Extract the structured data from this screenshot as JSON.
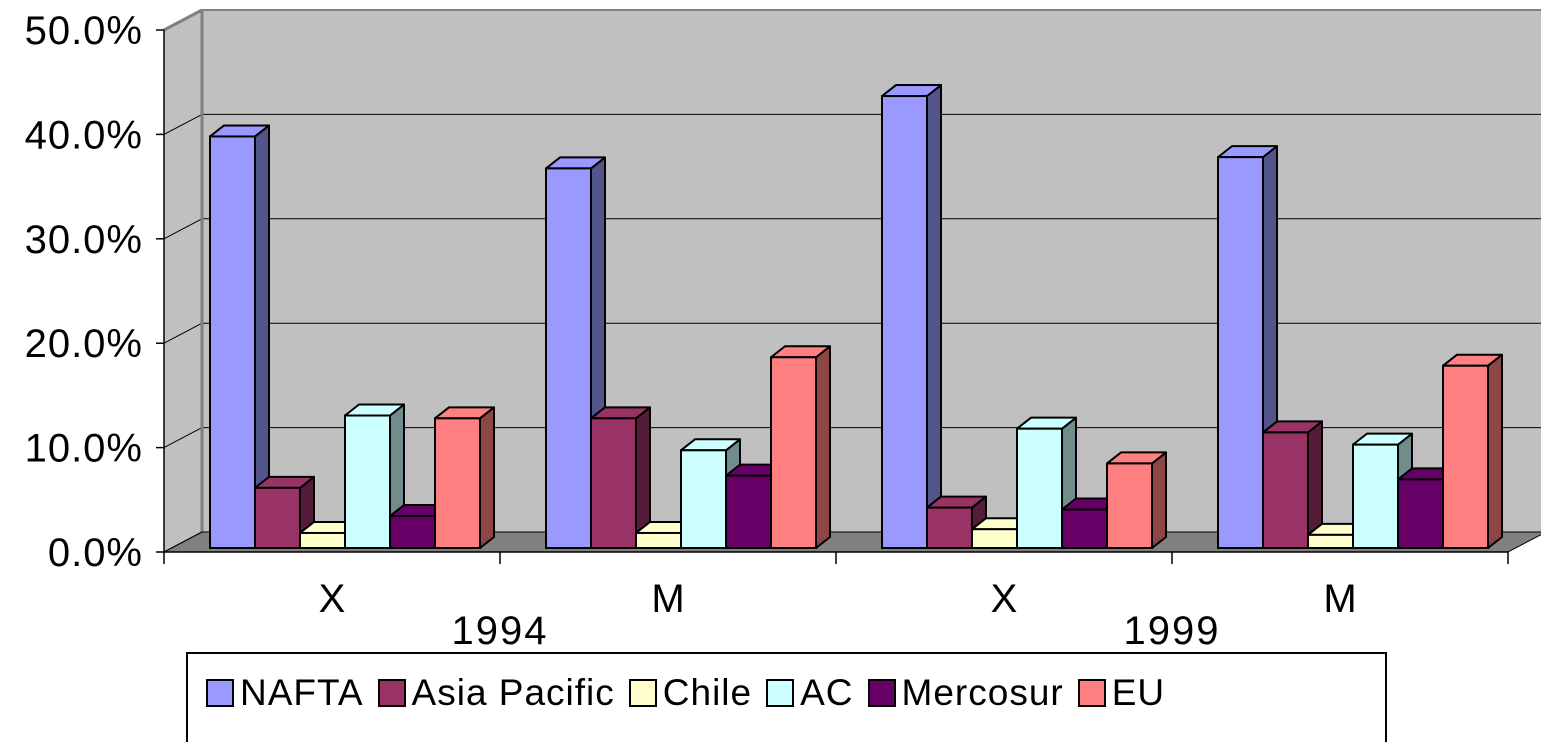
{
  "chart_data": {
    "type": "bar",
    "categories": [
      "X",
      "M",
      "X",
      "M"
    ],
    "groups": [
      "1994",
      "1999"
    ],
    "ylim": [
      0,
      50
    ],
    "yticks": [
      "0.0%",
      "10.0%",
      "20.0%",
      "30.0%",
      "40.0%",
      "50.0%"
    ],
    "grid": true,
    "legend_position": "bottom",
    "series": [
      {
        "name": "NAFTA",
        "color": "#9999ff",
        "values": [
          43.8,
          40.4,
          48.1,
          41.6
        ]
      },
      {
        "name": "Asia Pacific",
        "color": "#993366",
        "values": [
          6.4,
          13.8,
          4.3,
          12.3
        ]
      },
      {
        "name": "Chile",
        "color": "#ffffcc",
        "values": [
          1.6,
          1.6,
          2.0,
          1.4
        ]
      },
      {
        "name": "AC",
        "color": "#ccffff",
        "values": [
          14.1,
          10.4,
          12.7,
          11.0
        ]
      },
      {
        "name": "Mercosur",
        "color": "#660066",
        "values": [
          3.4,
          7.7,
          4.1,
          7.3
        ]
      },
      {
        "name": "EU",
        "color": "#ff8080",
        "values": [
          13.8,
          20.3,
          9.0,
          19.4
        ]
      }
    ]
  }
}
